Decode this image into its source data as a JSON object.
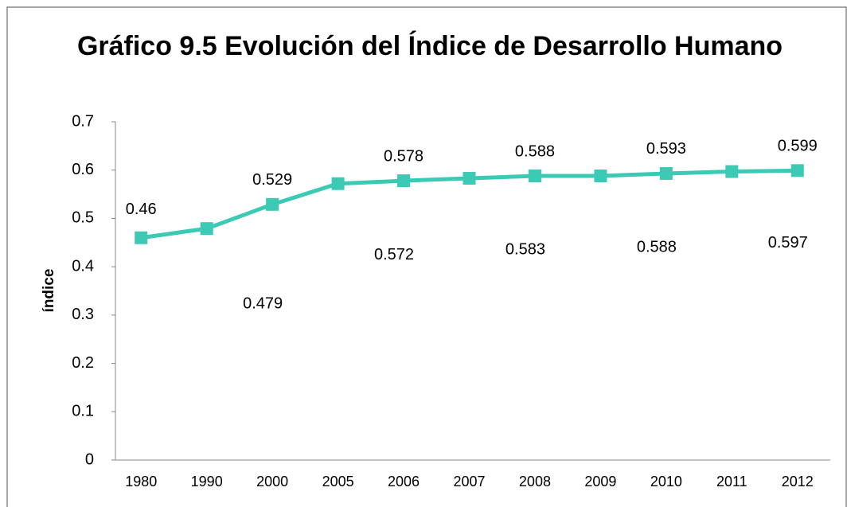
{
  "chart_data": {
    "type": "line",
    "title": "Gráfico 9.5 Evolución del Índice de Desarrollo Humano",
    "y_label": "índice",
    "categories": [
      "1980",
      "1990",
      "2000",
      "2005",
      "2006",
      "2007",
      "2008",
      "2009",
      "2010",
      "2011",
      "2012"
    ],
    "values": [
      0.46,
      0.479,
      0.529,
      0.572,
      0.578,
      0.583,
      0.588,
      0.588,
      0.593,
      0.597,
      0.599
    ],
    "color": "#3ccab4",
    "ylim": [
      0,
      0.7
    ],
    "yticks": [
      0,
      0.1,
      0.2,
      0.3,
      0.4,
      0.5,
      0.6,
      0.7
    ],
    "grid": false
  }
}
